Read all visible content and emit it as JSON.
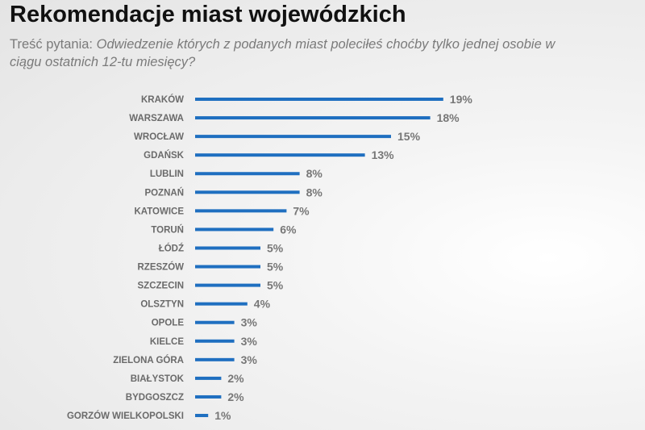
{
  "header": {
    "title": "Rekomendacje miast wojewódzkich",
    "question_label": "Treść pytania:",
    "question_text": "Odwiedzenie których z podanych miast poleciłeś choćby tylko jednej osobie w ciągu ostatnich 12-tu miesięcy?"
  },
  "chart_data": {
    "type": "bar",
    "orientation": "horizontal",
    "title": "Rekomendacje miast wojewódzkich",
    "categories": [
      "KRAKÓW",
      "WARSZAWA",
      "WROCŁAW",
      "GDAŃSK",
      "LUBLIN",
      "POZNAŃ",
      "KATOWICE",
      "TORUŃ",
      "ŁÓDŹ",
      "RZESZÓW",
      "SZCZECIN",
      "OLSZTYN",
      "OPOLE",
      "KIELCE",
      "ZIELONA GÓRA",
      "BIAŁYSTOK",
      "BYDGOSZCZ",
      "GORZÓW WIELKOPOLSKI"
    ],
    "values": [
      19,
      18,
      15,
      13,
      8,
      8,
      7,
      6,
      5,
      5,
      5,
      4,
      3,
      3,
      3,
      2,
      2,
      1
    ],
    "value_labels": [
      "19%",
      "18%",
      "15%",
      "13%",
      "8%",
      "8%",
      "7%",
      "6%",
      "5%",
      "5%",
      "5%",
      "4%",
      "3%",
      "3%",
      "3%",
      "2%",
      "2%",
      "1%"
    ],
    "unit": "%",
    "bar_color": "#1f6fc0",
    "grid": false,
    "axes_visible": false
  }
}
